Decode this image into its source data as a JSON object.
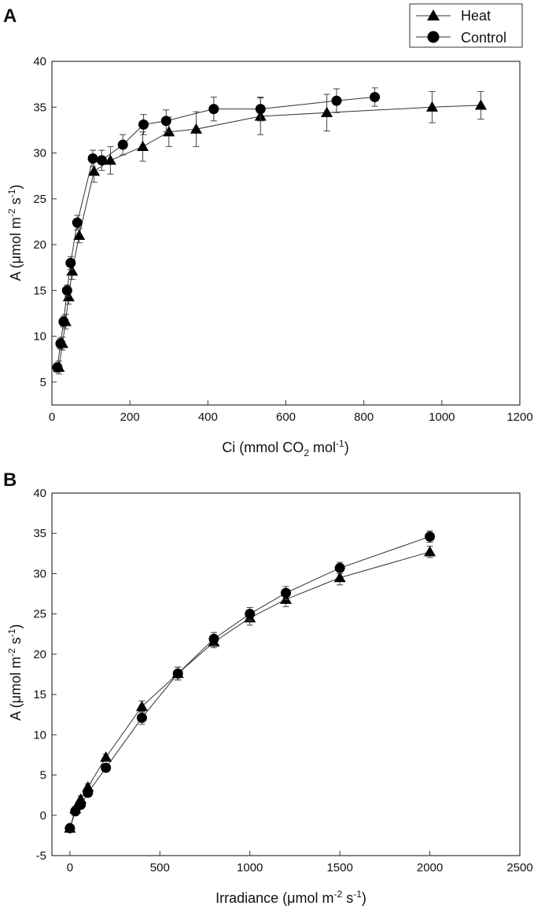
{
  "chart_data": [
    {
      "type": "scatter",
      "panel_label": "A",
      "title": "",
      "xlabel": "Ci (mmol CO",
      "xlabel_sub": "2",
      "xlabel_tail": " mol",
      "xlabel_sup": "-1",
      "xlabel_end": ")",
      "ylabel": "A (μmol m",
      "ylabel_sup1": "-2",
      "ylabel_mid": " s",
      "ylabel_sup2": "-1",
      "ylabel_end": ")",
      "xlim": [
        0,
        1200
      ],
      "ylim": [
        2.5,
        40
      ],
      "xticks": [
        "0",
        "200",
        "400",
        "600",
        "800",
        "1000",
        "1200"
      ],
      "yticks": [
        "5",
        "10",
        "15",
        "20",
        "25",
        "30",
        "35",
        "40"
      ],
      "grid": false,
      "legend_position": "top-right",
      "series": [
        {
          "name": "Heat",
          "marker": "triangle",
          "x": [
            18,
            27,
            35,
            43,
            52,
            70,
            108,
            150,
            233,
            300,
            370,
            535,
            705,
            975,
            1100
          ],
          "y": [
            6.6,
            9.2,
            11.6,
            14.3,
            17.1,
            21.0,
            28.0,
            29.2,
            30.7,
            32.3,
            32.6,
            34.0,
            34.4,
            35.0,
            35.2
          ],
          "err": [
            0.7,
            0.7,
            0.8,
            0.8,
            0.9,
            0.8,
            1.2,
            1.5,
            1.6,
            1.6,
            1.9,
            2.0,
            2.0,
            1.7,
            1.5
          ]
        },
        {
          "name": "Control",
          "marker": "circle",
          "x": [
            14,
            22,
            30,
            39,
            48,
            65,
            105,
            128,
            182,
            235,
            293,
            415,
            535,
            730,
            828
          ],
          "y": [
            6.6,
            9.2,
            11.6,
            15.0,
            18.0,
            22.4,
            29.4,
            29.2,
            30.9,
            33.1,
            33.5,
            34.8,
            34.8,
            35.7,
            36.1
          ],
          "err": [
            0.5,
            0.6,
            0.6,
            0.6,
            0.7,
            0.8,
            0.9,
            1.1,
            1.1,
            1.1,
            1.2,
            1.3,
            1.3,
            1.3,
            1.0
          ]
        }
      ]
    },
    {
      "type": "scatter",
      "panel_label": "B",
      "title": "",
      "xlabel": "Irradiance (μmol m",
      "xlabel_sup1": "-2",
      "xlabel_mid": " s",
      "xlabel_sup2": "-1",
      "xlabel_end": ")",
      "ylabel": "A (μmol m",
      "ylabel_sup1": "-2",
      "ylabel_mid": " s",
      "ylabel_sup2": "-1",
      "ylabel_end": ")",
      "xlim": [
        -100,
        2500
      ],
      "ylim": [
        -5,
        40
      ],
      "xticks": [
        "0",
        "500",
        "1000",
        "1500",
        "2000",
        "2500"
      ],
      "yticks": [
        "-5",
        "0",
        "5",
        "10",
        "15",
        "20",
        "25",
        "30",
        "35",
        "40"
      ],
      "grid": false,
      "series": [
        {
          "name": "Heat",
          "marker": "triangle",
          "x": [
            0,
            30,
            60,
            100,
            200,
            400,
            600,
            800,
            1000,
            1200,
            1500,
            2000
          ],
          "y": [
            -1.6,
            0.8,
            2.0,
            3.5,
            7.2,
            13.5,
            17.6,
            21.5,
            24.5,
            26.8,
            29.5,
            32.7
          ],
          "err": [
            0.3,
            0.3,
            0.4,
            0.4,
            0.4,
            0.7,
            0.8,
            0.7,
            0.9,
            0.9,
            0.9,
            0.7
          ]
        },
        {
          "name": "Control",
          "marker": "circle",
          "x": [
            0,
            30,
            60,
            100,
            200,
            400,
            600,
            800,
            1000,
            1200,
            1500,
            2000
          ],
          "y": [
            -1.6,
            0.5,
            1.3,
            2.8,
            5.9,
            12.1,
            17.6,
            21.9,
            25.0,
            27.6,
            30.7,
            34.6
          ],
          "err": [
            0.3,
            0.3,
            0.3,
            0.4,
            0.5,
            0.8,
            0.8,
            0.8,
            0.8,
            0.8,
            0.7,
            0.7
          ]
        }
      ]
    }
  ]
}
